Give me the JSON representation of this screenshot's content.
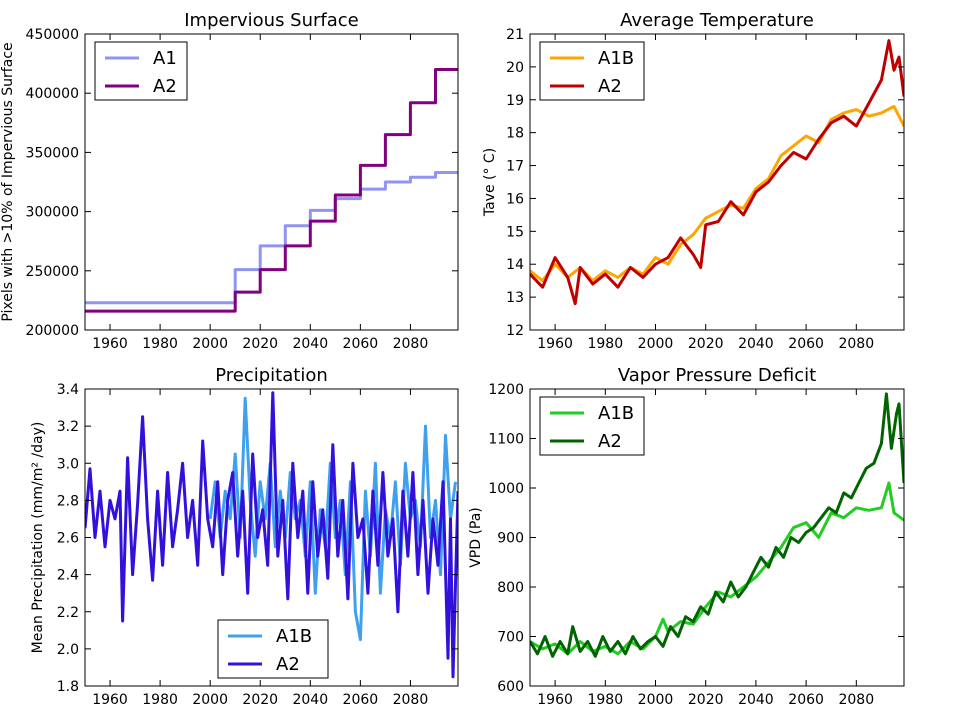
{
  "chart_data": [
    {
      "type": "line",
      "title": "Impervious Surface",
      "xlabel": "",
      "ylabel": "Pixels with >10% of Impervious Surface",
      "xlim": [
        1950,
        2099
      ],
      "ylim": [
        200000,
        450000
      ],
      "xticks": [
        1960,
        1980,
        2000,
        2020,
        2040,
        2060,
        2080
      ],
      "yticks": [
        200000,
        250000,
        300000,
        350000,
        400000,
        450000
      ],
      "legend": "top-left",
      "step": true,
      "series": [
        {
          "name": "A1",
          "color": "#8f95f0",
          "x": [
            1950,
            2010,
            2020,
            2030,
            2040,
            2050,
            2060,
            2070,
            2080,
            2090,
            2099
          ],
          "y": [
            223000,
            251000,
            271000,
            288000,
            301000,
            311000,
            319000,
            325000,
            329000,
            333000,
            333000
          ]
        },
        {
          "name": "A2",
          "color": "#800080",
          "x": [
            1950,
            2010,
            2020,
            2030,
            2040,
            2050,
            2060,
            2070,
            2080,
            2090,
            2099
          ],
          "y": [
            216000,
            232000,
            251000,
            271000,
            292000,
            314000,
            339000,
            365000,
            392000,
            420000,
            420000
          ]
        }
      ]
    },
    {
      "type": "line",
      "title": "Average Temperature",
      "xlabel": "",
      "ylabel": "Tave (° C)",
      "xlim": [
        1950,
        2099
      ],
      "ylim": [
        12,
        21
      ],
      "xticks": [
        1960,
        1980,
        2000,
        2020,
        2040,
        2060,
        2080
      ],
      "yticks": [
        12,
        13,
        14,
        15,
        16,
        17,
        18,
        19,
        20,
        21
      ],
      "legend": "top-left",
      "series": [
        {
          "name": "A1B",
          "color": "#ffa500",
          "x": [
            1950,
            1955,
            1960,
            1965,
            1970,
            1975,
            1980,
            1985,
            1990,
            1995,
            2000,
            2005,
            2010,
            2015,
            2020,
            2025,
            2030,
            2035,
            2040,
            2045,
            2050,
            2055,
            2060,
            2065,
            2070,
            2075,
            2080,
            2085,
            2090,
            2095,
            2099
          ],
          "y": [
            13.8,
            13.5,
            14.0,
            13.6,
            13.9,
            13.5,
            13.8,
            13.6,
            13.9,
            13.7,
            14.2,
            14.0,
            14.6,
            14.9,
            15.4,
            15.6,
            15.8,
            15.7,
            16.3,
            16.6,
            17.3,
            17.6,
            17.9,
            17.7,
            18.4,
            18.6,
            18.7,
            18.5,
            18.6,
            18.8,
            18.2
          ]
        },
        {
          "name": "A2",
          "color": "#c00000",
          "x": [
            1950,
            1955,
            1960,
            1965,
            1968,
            1970,
            1975,
            1980,
            1985,
            1990,
            1995,
            2000,
            2005,
            2010,
            2015,
            2018,
            2020,
            2025,
            2030,
            2035,
            2040,
            2045,
            2050,
            2055,
            2060,
            2065,
            2070,
            2075,
            2080,
            2085,
            2090,
            2093,
            2095,
            2097,
            2099
          ],
          "y": [
            13.7,
            13.3,
            14.2,
            13.6,
            12.8,
            13.9,
            13.4,
            13.7,
            13.3,
            13.9,
            13.6,
            14.0,
            14.2,
            14.8,
            14.3,
            13.9,
            15.2,
            15.3,
            15.9,
            15.5,
            16.2,
            16.5,
            17.0,
            17.4,
            17.2,
            17.8,
            18.3,
            18.5,
            18.2,
            18.9,
            19.6,
            20.8,
            19.9,
            20.3,
            19.1
          ]
        }
      ]
    },
    {
      "type": "line",
      "title": "Precipitation",
      "xlabel": "",
      "ylabel": "Mean Precipitation (mm/m² /day)",
      "xlim": [
        1950,
        2099
      ],
      "ylim": [
        1.8,
        3.4
      ],
      "xticks": [
        1960,
        1980,
        2000,
        2020,
        2040,
        2060,
        2080
      ],
      "yticks": [
        1.8,
        2.0,
        2.2,
        2.4,
        2.6,
        2.8,
        3.0,
        3.2,
        3.4
      ],
      "legend": "bottom-center",
      "series": [
        {
          "name": "A1B",
          "color": "#3fa0ee",
          "x": [
            2000,
            2002,
            2004,
            2006,
            2008,
            2010,
            2012,
            2014,
            2016,
            2018,
            2020,
            2022,
            2024,
            2026,
            2028,
            2030,
            2032,
            2034,
            2036,
            2038,
            2040,
            2042,
            2044,
            2046,
            2048,
            2050,
            2052,
            2054,
            2056,
            2058,
            2060,
            2062,
            2064,
            2066,
            2068,
            2070,
            2072,
            2074,
            2076,
            2078,
            2080,
            2082,
            2084,
            2086,
            2088,
            2090,
            2092,
            2094,
            2096,
            2098
          ],
          "y": [
            2.7,
            2.9,
            2.6,
            2.85,
            2.7,
            3.05,
            2.6,
            3.35,
            2.8,
            2.5,
            2.9,
            2.7,
            3.0,
            2.55,
            2.85,
            2.6,
            2.95,
            2.7,
            2.8,
            2.5,
            2.9,
            2.3,
            2.75,
            2.55,
            3.0,
            2.6,
            2.8,
            2.4,
            2.9,
            2.2,
            2.05,
            2.85,
            2.5,
            3.0,
            2.3,
            2.75,
            2.6,
            2.9,
            2.45,
            3.0,
            2.7,
            2.8,
            2.55,
            3.2,
            2.6,
            2.8,
            2.4,
            3.15,
            2.7,
            2.9
          ]
        },
        {
          "name": "A2",
          "color": "#3311dd",
          "x": [
            1950,
            1952,
            1954,
            1956,
            1958,
            1960,
            1962,
            1964,
            1965,
            1967,
            1969,
            1971,
            1973,
            1975,
            1977,
            1979,
            1981,
            1983,
            1985,
            1987,
            1989,
            1991,
            1993,
            1995,
            1997,
            1999,
            2001,
            2003,
            2005,
            2007,
            2009,
            2011,
            2013,
            2015,
            2017,
            2019,
            2021,
            2023,
            2025,
            2027,
            2029,
            2031,
            2033,
            2035,
            2037,
            2039,
            2041,
            2043,
            2045,
            2047,
            2049,
            2051,
            2053,
            2055,
            2057,
            2059,
            2061,
            2063,
            2065,
            2067,
            2069,
            2071,
            2073,
            2075,
            2077,
            2079,
            2081,
            2083,
            2085,
            2087,
            2089,
            2091,
            2093,
            2095,
            2096,
            2097,
            2099
          ],
          "y": [
            2.65,
            2.97,
            2.6,
            2.85,
            2.55,
            2.8,
            2.7,
            2.85,
            2.15,
            3.03,
            2.4,
            2.78,
            3.25,
            2.7,
            2.37,
            2.85,
            2.45,
            2.95,
            2.55,
            2.75,
            3.0,
            2.6,
            2.8,
            2.45,
            3.12,
            2.7,
            2.55,
            2.9,
            2.4,
            2.8,
            2.95,
            2.5,
            2.85,
            2.3,
            3.05,
            2.6,
            2.75,
            2.45,
            3.38,
            2.5,
            2.8,
            2.27,
            3.0,
            2.6,
            2.85,
            2.3,
            2.9,
            2.5,
            2.75,
            2.38,
            3.1,
            2.5,
            2.8,
            2.27,
            3.0,
            2.6,
            2.7,
            2.3,
            2.85,
            2.45,
            2.95,
            2.5,
            2.7,
            2.2,
            2.85,
            2.5,
            2.95,
            2.4,
            2.8,
            2.3,
            2.7,
            2.45,
            2.9,
            1.95,
            2.7,
            1.85,
            2.85
          ]
        }
      ]
    },
    {
      "type": "line",
      "title": "Vapor Pressure Deficit",
      "xlabel": "",
      "ylabel": "VPD (Pa)",
      "xlim": [
        1950,
        2099
      ],
      "ylim": [
        600,
        1200
      ],
      "xticks": [
        1960,
        1980,
        2000,
        2020,
        2040,
        2060,
        2080
      ],
      "yticks": [
        600,
        700,
        800,
        900,
        1000,
        1100,
        1200
      ],
      "legend": "top-left",
      "series": [
        {
          "name": "A1B",
          "color": "#22cc22",
          "x": [
            1950,
            1955,
            1960,
            1965,
            1970,
            1975,
            1980,
            1985,
            1990,
            1995,
            2000,
            2003,
            2005,
            2010,
            2015,
            2020,
            2025,
            2030,
            2035,
            2040,
            2045,
            2050,
            2055,
            2060,
            2065,
            2070,
            2075,
            2080,
            2085,
            2090,
            2093,
            2095,
            2099
          ],
          "y": [
            690,
            675,
            685,
            665,
            690,
            670,
            680,
            665,
            690,
            675,
            700,
            735,
            710,
            730,
            725,
            760,
            790,
            780,
            800,
            820,
            850,
            880,
            920,
            930,
            900,
            950,
            940,
            960,
            955,
            960,
            1010,
            950,
            935
          ]
        },
        {
          "name": "A2",
          "color": "#006400",
          "x": [
            1950,
            1953,
            1956,
            1959,
            1962,
            1965,
            1967,
            1970,
            1973,
            1976,
            1979,
            1982,
            1985,
            1988,
            1991,
            1994,
            1997,
            2000,
            2003,
            2006,
            2009,
            2012,
            2015,
            2018,
            2021,
            2024,
            2027,
            2030,
            2033,
            2036,
            2039,
            2042,
            2045,
            2048,
            2051,
            2054,
            2057,
            2060,
            2063,
            2066,
            2069,
            2072,
            2075,
            2078,
            2081,
            2084,
            2087,
            2090,
            2092,
            2094,
            2096,
            2097,
            2099
          ],
          "y": [
            690,
            665,
            700,
            660,
            690,
            665,
            720,
            670,
            690,
            660,
            700,
            670,
            690,
            665,
            700,
            675,
            690,
            700,
            680,
            720,
            700,
            740,
            730,
            760,
            745,
            790,
            770,
            810,
            780,
            800,
            830,
            860,
            840,
            880,
            860,
            900,
            890,
            910,
            920,
            940,
            960,
            950,
            990,
            980,
            1010,
            1040,
            1050,
            1090,
            1190,
            1080,
            1150,
            1170,
            1010
          ]
        }
      ]
    }
  ]
}
